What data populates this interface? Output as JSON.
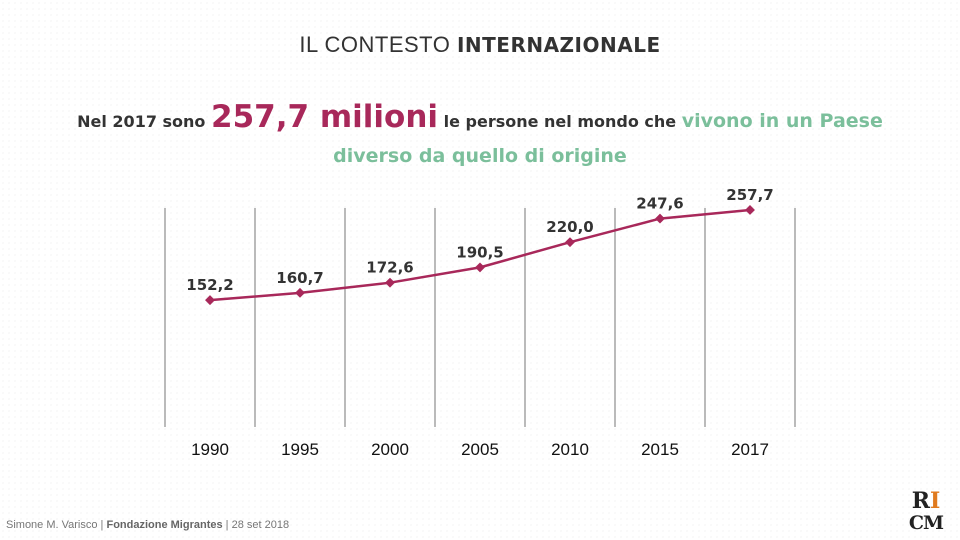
{
  "title": {
    "regular": "IL CONTESTO ",
    "bold": "INTERNAZIONALE"
  },
  "headline": {
    "part1": "Nel 2017 sono ",
    "highlight": "257,7 milioni",
    "part2": " le persone nel mondo che ",
    "green1": "vivono in un Paese",
    "green2": "diverso da quello di origine"
  },
  "colors": {
    "line": "#a8285a",
    "highlight": "#a8285a",
    "green": "#7bbf9b",
    "gridline": "#777777"
  },
  "chart_data": {
    "type": "line",
    "categories": [
      "1990",
      "1995",
      "2000",
      "2005",
      "2010",
      "2015",
      "2017"
    ],
    "values": [
      152.2,
      160.7,
      172.6,
      190.5,
      220.0,
      247.6,
      257.7
    ],
    "data_labels": [
      "152,2",
      "160,7",
      "172,6",
      "190,5",
      "220,0",
      "247,6",
      "257,7"
    ],
    "grid": "vertical",
    "legend": "none"
  },
  "footer": {
    "author": "Simone M. Varisco",
    "sep": " | ",
    "org": "Fondazione Migrantes",
    "date": " | 28 set 2018"
  },
  "logo": {
    "line1_a": "R",
    "line1_b": "I",
    "line2": "CM"
  }
}
